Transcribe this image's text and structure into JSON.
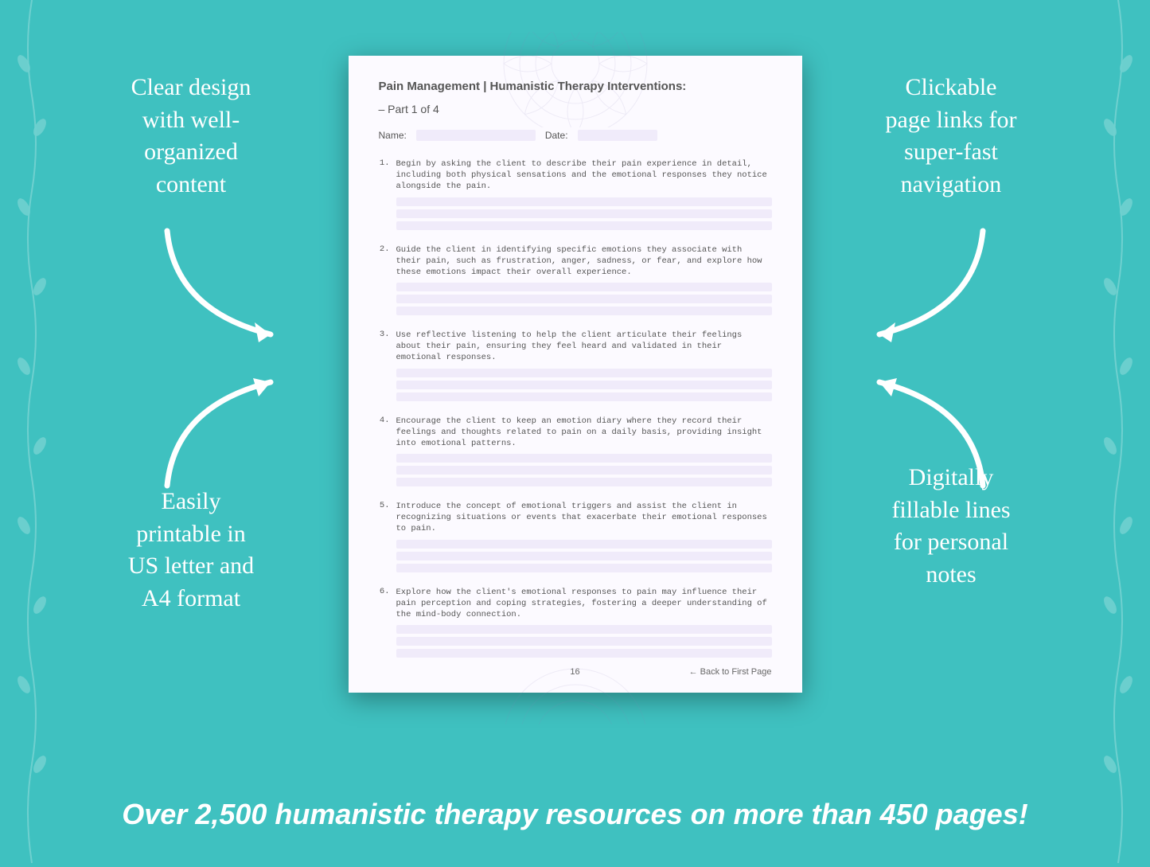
{
  "background_color": "#3fc1c0",
  "text_color": "#ffffff",
  "callouts": {
    "top_left": "Clear design\nwith well-\norganized\ncontent",
    "top_right": "Clickable\npage links for\nsuper-fast\nnavigation",
    "bottom_left": "Easily\nprintable in\nUS letter and\nA4 format",
    "bottom_right": "Digitally\nfillable lines\nfor personal\nnotes"
  },
  "bottom_banner": "Over 2,500 humanistic therapy resources on more than 450 pages!",
  "page": {
    "background": "#fcfaff",
    "fill_color": "#f0ebfa",
    "text_color": "#555555",
    "title": "Pain Management | Humanistic Therapy Interventions:",
    "subtitle": "– Part 1 of 4",
    "meta": {
      "name_label": "Name:",
      "date_label": "Date:"
    },
    "items": [
      {
        "n": "1.",
        "text": "Begin by asking the client to describe their pain experience in detail, including both physical sensations and the emotional responses they notice alongside the pain."
      },
      {
        "n": "2.",
        "text": "Guide the client in identifying specific emotions they associate with their pain, such as frustration, anger, sadness, or fear, and explore how these emotions impact their overall experience."
      },
      {
        "n": "3.",
        "text": "Use reflective listening to help the client articulate their feelings about their pain, ensuring they feel heard and validated in their emotional responses."
      },
      {
        "n": "4.",
        "text": "Encourage the client to keep an emotion diary where they record their feelings and thoughts related to pain on a daily basis, providing insight into emotional patterns."
      },
      {
        "n": "5.",
        "text": "Introduce the concept of emotional triggers and assist the client in recognizing situations or events that exacerbate their emotional responses to pain."
      },
      {
        "n": "6.",
        "text": "Explore how the client's emotional responses to pain may influence their pain perception and coping strategies, fostering a deeper understanding of the mind-body connection."
      }
    ],
    "lines_per_item": 3,
    "page_number": "16",
    "back_link": "← Back to First Page"
  }
}
